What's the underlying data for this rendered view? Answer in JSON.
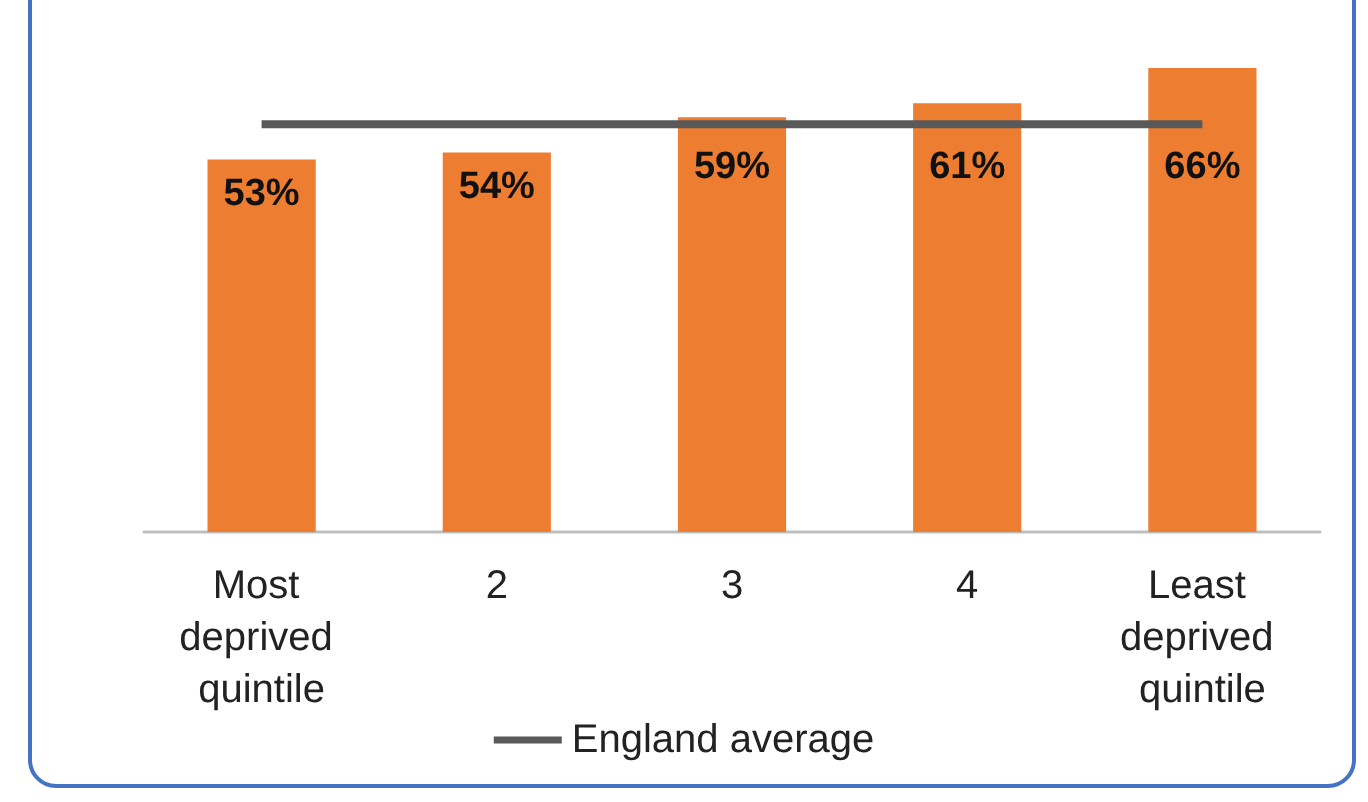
{
  "chart_data": {
    "type": "bar",
    "categories": [
      "Most deprived quintile",
      "2",
      "3",
      "4",
      "Least deprived quintile"
    ],
    "series": [
      {
        "type": "bar",
        "color": "#ed7d31",
        "values": [
          53,
          54,
          59,
          61,
          66
        ],
        "value_labels": [
          "53%",
          "54%",
          "59%",
          "61%",
          "66%"
        ]
      },
      {
        "type": "line",
        "name": "England average",
        "color": "#595959",
        "values": [
          58,
          58,
          58,
          58,
          58
        ]
      }
    ],
    "legend": "bottom",
    "grid": false,
    "marker": "none"
  }
}
